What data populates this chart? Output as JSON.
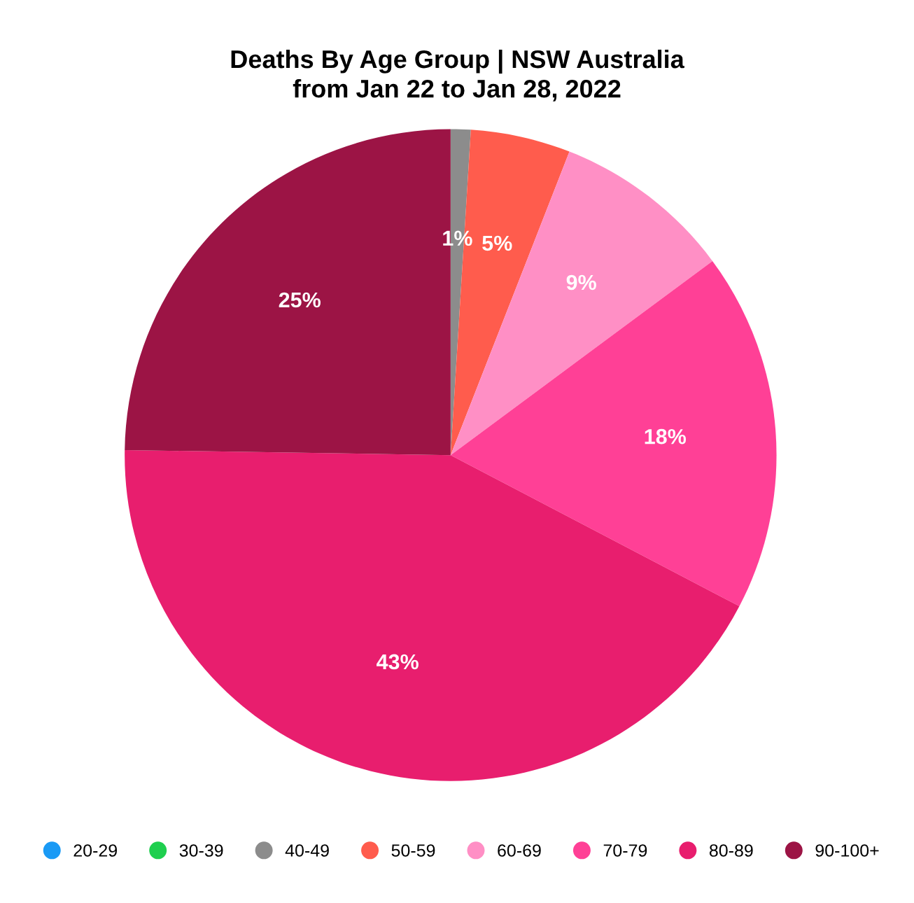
{
  "chart_data": {
    "type": "pie",
    "title": "Deaths By Age Group | NSW Australia\nfrom Jan 22 to Jan 28, 2022",
    "categories": [
      "20-29",
      "30-39",
      "40-49",
      "50-59",
      "60-69",
      "70-79",
      "80-89",
      "90-100+"
    ],
    "values": [
      0,
      0,
      1,
      5,
      9,
      18,
      43,
      25
    ],
    "value_labels": [
      null,
      null,
      "1%",
      "5%",
      "9%",
      "18%",
      "43%",
      "25%"
    ],
    "colors": [
      "#1a9af5",
      "#1fcf4f",
      "#8c8c8c",
      "#ff5c4d",
      "#ff8fc5",
      "#ff4096",
      "#e81e6e",
      "#9c1445"
    ],
    "legend": "bottom"
  }
}
